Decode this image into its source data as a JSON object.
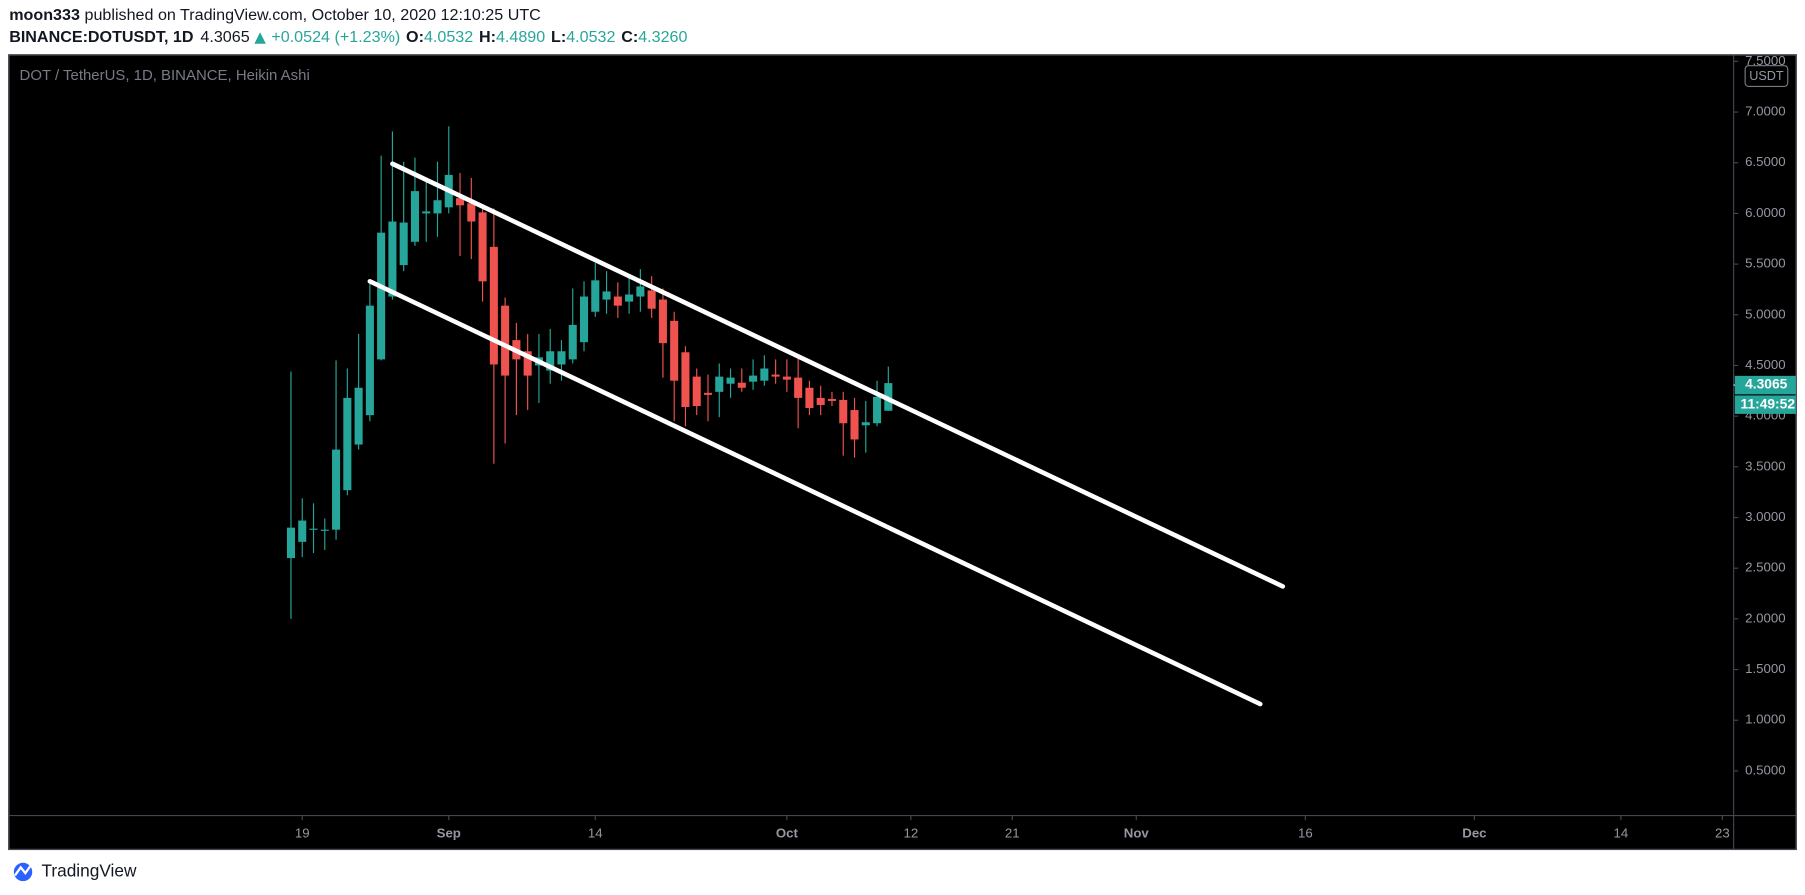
{
  "header": {
    "author": "moon333",
    "published": "published on TradingView.com, October 10, 2020 12:10:25 UTC",
    "symbol": "BINANCE:DOTUSDT, 1D",
    "price": "4.3065",
    "change": "+0.0524 (+1.23%)",
    "ohlc": [
      {
        "label": "O:",
        "value": "4.0532"
      },
      {
        "label": "H:",
        "value": "4.4890"
      },
      {
        "label": "L:",
        "value": "4.0532"
      },
      {
        "label": "C:",
        "value": "4.3260"
      }
    ]
  },
  "chart_data": {
    "type": "candlestick",
    "title": "DOT / TetherUS, 1D, BINANCE, Heikin Ashi",
    "currency": "USDT",
    "up_color": "#26a69a",
    "down_color": "#ef5350",
    "grid": false,
    "dates": [
      "2020-08-18",
      "2020-08-19",
      "2020-08-20",
      "2020-08-21",
      "2020-08-22",
      "2020-08-23",
      "2020-08-24",
      "2020-08-25",
      "2020-08-26",
      "2020-08-27",
      "2020-08-28",
      "2020-08-29",
      "2020-08-30",
      "2020-08-31",
      "2020-09-01",
      "2020-09-02",
      "2020-09-03",
      "2020-09-04",
      "2020-09-05",
      "2020-09-06",
      "2020-09-07",
      "2020-09-08",
      "2020-09-09",
      "2020-09-10",
      "2020-09-11",
      "2020-09-12",
      "2020-09-13",
      "2020-09-14",
      "2020-09-15",
      "2020-09-16",
      "2020-09-17",
      "2020-09-18",
      "2020-09-19",
      "2020-09-20",
      "2020-09-21",
      "2020-09-22",
      "2020-09-23",
      "2020-09-24",
      "2020-09-25",
      "2020-09-26",
      "2020-09-27",
      "2020-09-28",
      "2020-09-29",
      "2020-09-30",
      "2020-10-01",
      "2020-10-02",
      "2020-10-03",
      "2020-10-04",
      "2020-10-05",
      "2020-10-06",
      "2020-10-07",
      "2020-10-08",
      "2020-10-09",
      "2020-10-10"
    ],
    "open": [
      2.6,
      2.76,
      2.88,
      2.88,
      2.88,
      3.27,
      3.72,
      4.01,
      4.56,
      5.18,
      5.49,
      5.72,
      6.0,
      6.0,
      6.06,
      6.15,
      6.1,
      6.01,
      5.67,
      5.09,
      4.75,
      4.64,
      4.5,
      4.45,
      4.51,
      4.56,
      4.73,
      5.03,
      5.15,
      5.18,
      5.13,
      5.18,
      5.24,
      5.15,
      4.94,
      4.63,
      4.39,
      4.23,
      4.24,
      4.32,
      4.33,
      4.34,
      4.35,
      4.41,
      4.39,
      4.38,
      4.28,
      4.18,
      4.17,
      4.16,
      4.06,
      3.91,
      3.93,
      4.0532
    ],
    "high": [
      4.44,
      3.19,
      3.14,
      2.99,
      4.55,
      4.47,
      4.81,
      5.33,
      6.57,
      6.81,
      6.51,
      6.55,
      6.34,
      6.51,
      6.86,
      6.4,
      6.35,
      6.06,
      6.05,
      5.17,
      4.92,
      4.81,
      4.81,
      4.86,
      4.75,
      5.26,
      5.33,
      5.51,
      5.43,
      5.32,
      5.38,
      5.45,
      5.38,
      5.26,
      5.03,
      4.69,
      4.47,
      4.41,
      4.52,
      4.47,
      4.47,
      4.56,
      4.6,
      4.56,
      4.56,
      4.58,
      4.35,
      4.3,
      4.24,
      4.24,
      4.18,
      4.15,
      4.35,
      4.489
    ],
    "low": [
      2.0,
      2.61,
      2.65,
      2.68,
      2.78,
      3.22,
      3.67,
      3.95,
      4.55,
      5.15,
      5.43,
      5.68,
      5.72,
      5.77,
      6.0,
      5.58,
      5.55,
      5.13,
      3.53,
      3.73,
      4.01,
      4.06,
      4.13,
      4.32,
      4.35,
      4.52,
      4.64,
      4.98,
      5.01,
      4.97,
      5.01,
      5.03,
      4.97,
      4.38,
      3.95,
      3.9,
      4.01,
      3.95,
      3.99,
      4.18,
      4.24,
      4.26,
      4.3,
      4.32,
      4.24,
      3.88,
      4.01,
      4.01,
      4.1,
      3.61,
      3.59,
      3.64,
      3.9,
      4.0532
    ],
    "close": [
      2.9,
      2.97,
      2.89,
      2.88,
      3.67,
      4.18,
      4.28,
      5.09,
      5.81,
      5.92,
      5.91,
      6.22,
      6.02,
      6.13,
      6.38,
      6.08,
      5.92,
      5.33,
      4.51,
      4.4,
      4.56,
      4.4,
      4.58,
      4.64,
      4.64,
      4.9,
      5.18,
      5.34,
      5.23,
      5.09,
      5.2,
      5.28,
      5.06,
      4.72,
      4.35,
      4.09,
      4.1,
      4.21,
      4.39,
      4.38,
      4.28,
      4.4,
      4.47,
      4.39,
      4.36,
      4.18,
      4.08,
      4.11,
      4.15,
      3.93,
      3.77,
      3.94,
      4.19,
      4.326
    ],
    "last_price": 4.3065,
    "countdown": "11:49:52",
    "trendlines": [
      {
        "x": [
          "2020-08-27",
          "2020-11-14"
        ],
        "y": [
          6.49,
          2.32
        ],
        "color": "#ffffff"
      },
      {
        "x": [
          "2020-08-25",
          "2020-11-12"
        ],
        "y": [
          5.33,
          1.16
        ],
        "color": "#ffffff"
      }
    ],
    "xlim": [
      "2020-07-24",
      "2020-12-24"
    ],
    "xticks": [
      {
        "value": "2020-08-19",
        "label": "19"
      },
      {
        "value": "2020-09-01",
        "label": "Sep"
      },
      {
        "value": "2020-09-14",
        "label": "14"
      },
      {
        "value": "2020-10-01",
        "label": "Oct"
      },
      {
        "value": "2020-10-12",
        "label": "12"
      },
      {
        "value": "2020-10-21",
        "label": "21"
      },
      {
        "value": "2020-11-01",
        "label": "Nov"
      },
      {
        "value": "2020-11-16",
        "label": "16"
      },
      {
        "value": "2020-12-01",
        "label": "Dec"
      },
      {
        "value": "2020-12-14",
        "label": "14"
      },
      {
        "value": "2020-12-23",
        "label": "23"
      }
    ],
    "ylim": [
      0.06,
      7.56
    ],
    "yticks": [
      {
        "value": 0.5,
        "label": "0.5000"
      },
      {
        "value": 1.0,
        "label": "1.0000"
      },
      {
        "value": 1.5,
        "label": "1.5000"
      },
      {
        "value": 2.0,
        "label": "2.0000"
      },
      {
        "value": 2.5,
        "label": "2.5000"
      },
      {
        "value": 3.0,
        "label": "3.0000"
      },
      {
        "value": 3.5,
        "label": "3.5000"
      },
      {
        "value": 4.0,
        "label": "4.0000"
      },
      {
        "value": 4.5,
        "label": "4.5000"
      },
      {
        "value": 5.0,
        "label": "5.0000"
      },
      {
        "value": 5.5,
        "label": "5.5000"
      },
      {
        "value": 6.0,
        "label": "6.0000"
      },
      {
        "value": 6.5,
        "label": "6.5000"
      },
      {
        "value": 7.0,
        "label": "7.0000"
      },
      {
        "value": 7.5,
        "label": "7.5000"
      }
    ]
  },
  "footer": {
    "brand": "TradingView"
  }
}
